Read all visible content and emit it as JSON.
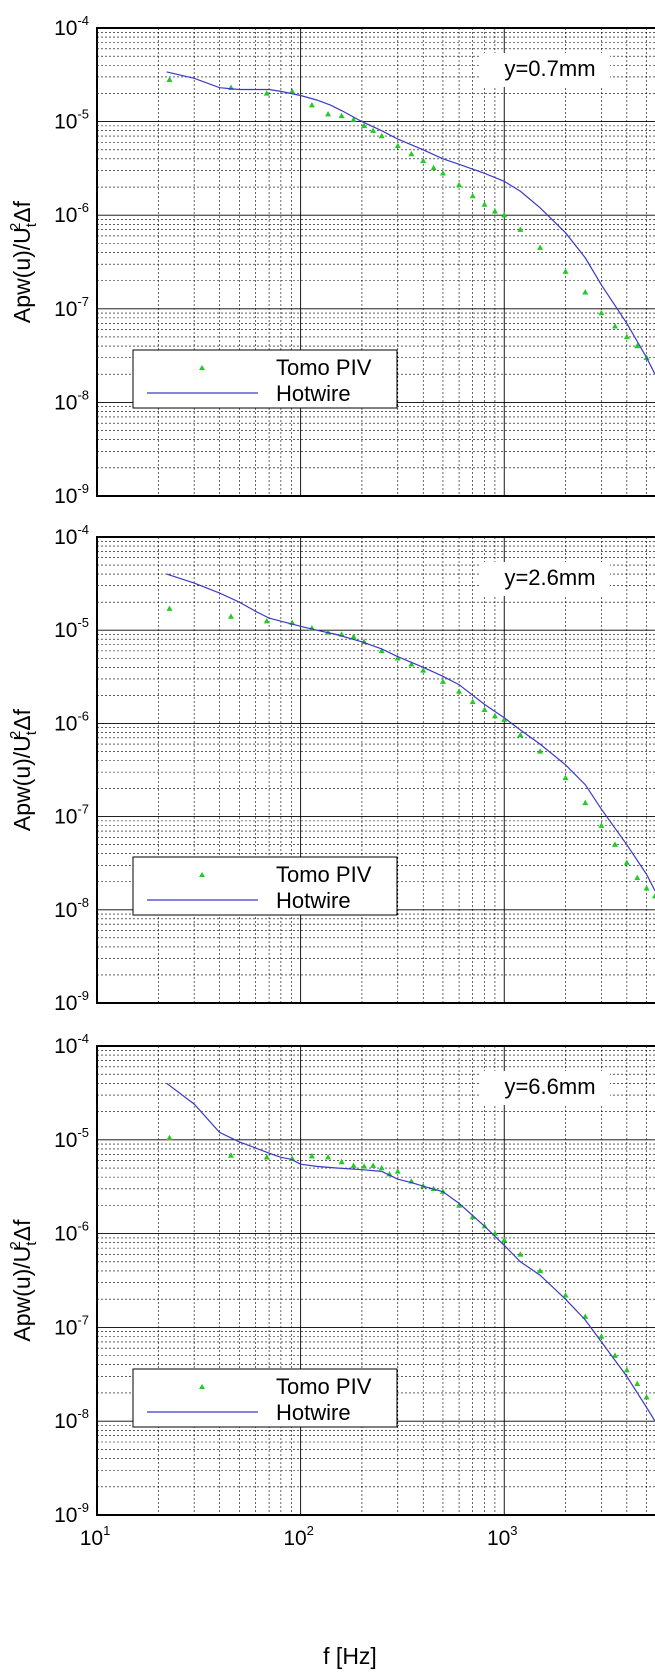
{
  "figure": {
    "xlabel": "f [Hz]",
    "ylabel_base": "Apw(u)/U",
    "ylabel_sub": "t",
    "ylabel_sup": "2",
    "ylabel_tail": "Δf"
  },
  "chart_data": [
    {
      "type": "scatter",
      "annotation": "y=0.7mm",
      "xscale": "log",
      "yscale": "log",
      "xlim": [
        10,
        5500
      ],
      "ylim": [
        1e-09,
        0.0001
      ],
      "grid": true,
      "legend_position": "bottom-left",
      "series": [
        {
          "name": "Tomo PIV",
          "marker": "triangle",
          "color": "#22cc22",
          "x": [
            22.7,
            45.5,
            68.2,
            90.9,
            113.6,
            136.4,
            159,
            182,
            205,
            227,
            250,
            300,
            350,
            400,
            450,
            500,
            600,
            700,
            800,
            900,
            1000,
            1200,
            1500,
            2000,
            2500,
            3000,
            3500,
            4000,
            4500,
            5000
          ],
          "y": [
            2.8e-05,
            2.3e-05,
            2e-05,
            2.1e-05,
            1.5e-05,
            1.2e-05,
            1.15e-05,
            1.05e-05,
            9e-06,
            8e-06,
            7e-06,
            5.5e-06,
            4.5e-06,
            3.8e-06,
            3.2e-06,
            2.8e-06,
            2.1e-06,
            1.6e-06,
            1.3e-06,
            1.1e-06,
            1e-06,
            7e-07,
            4.5e-07,
            2.5e-07,
            1.5e-07,
            9e-08,
            6.5e-08,
            5e-08,
            4e-08,
            3e-08
          ]
        },
        {
          "name": "Hotwire",
          "marker": "line",
          "color": "#3a3ac8",
          "x": [
            22,
            30,
            40,
            50,
            60,
            70,
            80,
            100,
            120,
            140,
            160,
            200,
            250,
            300,
            400,
            500,
            600,
            800,
            1000,
            1200,
            1500,
            2000,
            2500,
            3000,
            4000,
            5000,
            5500
          ],
          "y": [
            3.4e-05,
            2.9e-05,
            2.3e-05,
            2.2e-05,
            2.2e-05,
            2.2e-05,
            2.1e-05,
            1.9e-05,
            1.7e-05,
            1.5e-05,
            1.3e-05,
            1e-05,
            8e-06,
            6.5e-06,
            5e-06,
            4e-06,
            3.5e-06,
            2.8e-06,
            2.3e-06,
            1.8e-06,
            1.2e-06,
            6.5e-07,
            3.5e-07,
            1.8e-07,
            7e-08,
            3e-08,
            2e-08
          ]
        }
      ]
    },
    {
      "type": "scatter",
      "annotation": "y=2.6mm",
      "xscale": "log",
      "yscale": "log",
      "xlim": [
        10,
        5500
      ],
      "ylim": [
        1e-09,
        0.0001
      ],
      "grid": true,
      "legend_position": "bottom-left",
      "series": [
        {
          "name": "Tomo PIV",
          "marker": "triangle",
          "color": "#22cc22",
          "x": [
            22.7,
            45.5,
            68.2,
            90.9,
            113.6,
            136.4,
            159,
            182,
            205,
            250,
            300,
            350,
            400,
            500,
            600,
            700,
            800,
            900,
            1000,
            1200,
            1500,
            2000,
            2500,
            3000,
            3500,
            4000,
            4500,
            5000,
            5500
          ],
          "y": [
            1.7e-05,
            1.4e-05,
            1.25e-05,
            1.2e-05,
            1.05e-05,
            9.5e-06,
            9e-06,
            8.5e-06,
            7.5e-06,
            6e-06,
            5e-06,
            4.3e-06,
            3.7e-06,
            2.8e-06,
            2.2e-06,
            1.7e-06,
            1.4e-06,
            1.2e-06,
            1.1e-06,
            7.5e-07,
            5e-07,
            2.6e-07,
            1.4e-07,
            8e-08,
            5e-08,
            3.2e-08,
            2.2e-08,
            1.7e-08,
            1.4e-08
          ]
        },
        {
          "name": "Hotwire",
          "marker": "line",
          "color": "#3a3ac8",
          "x": [
            22,
            30,
            40,
            50,
            60,
            70,
            80,
            100,
            120,
            150,
            200,
            250,
            300,
            400,
            500,
            600,
            800,
            1000,
            1200,
            1500,
            2000,
            2500,
            3000,
            4000,
            5000,
            5500
          ],
          "y": [
            4e-05,
            3.2e-05,
            2.5e-05,
            2e-05,
            1.6e-05,
            1.35e-05,
            1.25e-05,
            1.1e-05,
            1e-05,
            9e-06,
            7.5e-06,
            6.3e-06,
            5.2e-06,
            4e-06,
            3.2e-06,
            2.6e-06,
            1.6e-06,
            1.15e-06,
            8.5e-07,
            6e-07,
            3.6e-07,
            2.2e-07,
            1.2e-07,
            5e-08,
            2.4e-08,
            1.6e-08
          ]
        }
      ]
    },
    {
      "type": "scatter",
      "annotation": "y=6.6mm",
      "xscale": "log",
      "yscale": "log",
      "xlim": [
        10,
        5500
      ],
      "ylim": [
        1e-09,
        0.0001
      ],
      "xlabel": "f [Hz]",
      "xticklabels": [
        "10",
        "10",
        "10"
      ],
      "grid": true,
      "legend_position": "bottom-left",
      "series": [
        {
          "name": "Tomo PIV",
          "marker": "triangle",
          "color": "#22cc22",
          "x": [
            22.7,
            45.5,
            68.2,
            90.9,
            113.6,
            136.4,
            159,
            182,
            205,
            227,
            250,
            273,
            300,
            350,
            400,
            450,
            500,
            600,
            700,
            800,
            900,
            1000,
            1200,
            1500,
            2000,
            2500,
            3000,
            3500,
            4000,
            4500,
            5000
          ],
          "y": [
            1.05e-05,
            6.8e-06,
            6.5e-06,
            6.3e-06,
            6.7e-06,
            6.5e-06,
            5.8e-06,
            5.3e-06,
            5.2e-06,
            5.3e-06,
            5e-06,
            4.3e-06,
            4.6e-06,
            3.6e-06,
            3.2e-06,
            3e-06,
            2.8e-06,
            2e-06,
            1.5e-06,
            1.2e-06,
            1e-06,
            8.5e-07,
            6e-07,
            4e-07,
            2.2e-07,
            1.3e-07,
            8e-08,
            5e-08,
            3.5e-08,
            2.5e-08,
            1.8e-08
          ]
        },
        {
          "name": "Hotwire",
          "marker": "line",
          "color": "#3a3ac8",
          "x": [
            22,
            30,
            40,
            50,
            60,
            70,
            80,
            90,
            100,
            120,
            150,
            200,
            250,
            300,
            350,
            400,
            500,
            600,
            800,
            1000,
            1200,
            1500,
            2000,
            2500,
            3000,
            4000,
            5000,
            5500
          ],
          "y": [
            4e-05,
            2.4e-05,
            1.2e-05,
            9.5e-06,
            8.2e-06,
            7.2e-06,
            6.5e-06,
            6.2e-06,
            5.5e-06,
            5.2e-06,
            5e-06,
            4.8e-06,
            4.6e-06,
            3.8e-06,
            3.5e-06,
            3.2e-06,
            2.8e-06,
            2.1e-06,
            1.2e-06,
            7.5e-07,
            5e-07,
            3.6e-07,
            2e-07,
            1.2e-07,
            7e-08,
            3e-08,
            1.4e-08,
            1e-08
          ]
        }
      ]
    }
  ]
}
